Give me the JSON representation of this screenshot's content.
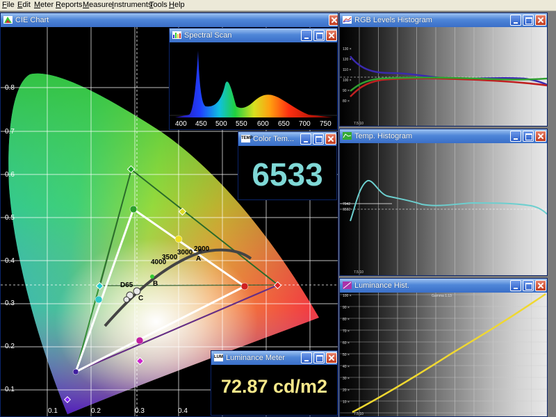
{
  "menu": [
    "File",
    "Edit",
    "Meter",
    "Reports",
    "Measure",
    "Instruments",
    "Tools",
    "Help"
  ],
  "windows": {
    "cie": {
      "title": "CIE Chart"
    },
    "spectral": {
      "title": "Spectral Scan"
    },
    "colortemp": {
      "title": "Color Tem...",
      "icon_text": "TEMP",
      "value": "6533"
    },
    "rgb": {
      "title": "RGB Levels Histogram"
    },
    "temp": {
      "title": "Temp. Histogram"
    },
    "lumhist": {
      "title": "Luminance Hist."
    },
    "lummeter": {
      "title": "Luminance Meter",
      "icon_text": "LUM",
      "value": "72.87 cd/m2"
    }
  },
  "cie_chart": {
    "x_ticks": [
      "0.1",
      "0.2",
      "0.3",
      "0.4"
    ],
    "y_ticks": [
      "0.8",
      "0.7",
      "0.6",
      "0.5",
      "0.4",
      "0.3",
      "0.2",
      "0.1"
    ],
    "temp_labels": [
      "2000",
      "3000",
      "3500",
      "4000"
    ],
    "point_labels": [
      "A",
      "B",
      "C",
      "D65"
    ]
  },
  "spectral_chart": {
    "x_ticks": [
      "400",
      "450",
      "500",
      "550",
      "600",
      "650",
      "700",
      "750"
    ]
  },
  "rgb_chart": {
    "y_ticks": [
      "130 ×",
      "120 ×",
      "110 ×",
      "100 ×",
      "90 ×",
      "80 ×"
    ],
    "x_first": "7.5 10"
  },
  "temp_chart": {
    "y_ticks": [
      "7042",
      "6502"
    ],
    "x_first": "7.5 10"
  },
  "lum_chart": {
    "y_ticks": [
      "100 ×",
      "90 ×",
      "80 ×",
      "70 ×",
      "60 ×",
      "50 ×",
      "40 ×",
      "30 ×",
      "20 ×",
      "10 ×"
    ],
    "gamma_label": "Gamma 1.13",
    "x_first": "7.5 10"
  },
  "colors": {
    "title_blue": "#3a6fc8",
    "value_cyan": "#7fd8d6",
    "value_yellow": "#f6e88a"
  }
}
